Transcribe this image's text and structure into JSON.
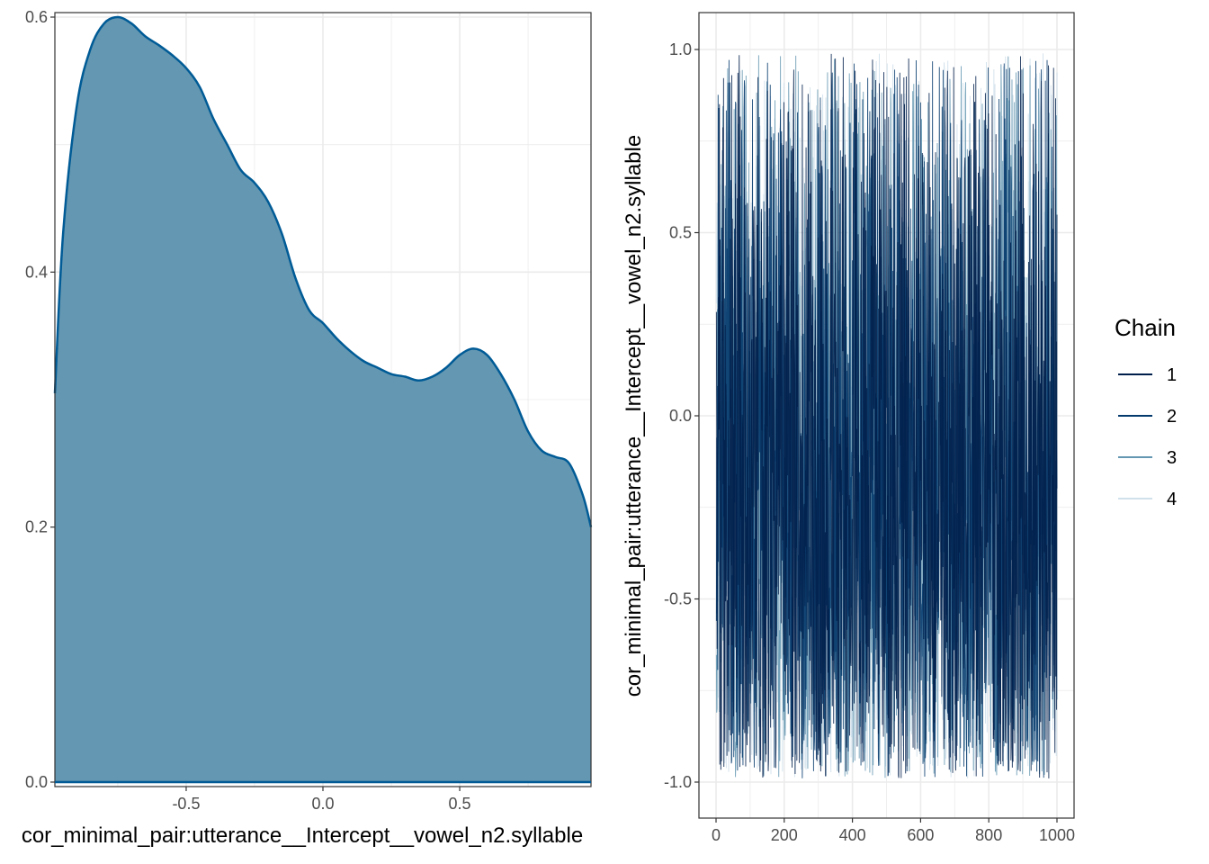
{
  "chart_data": [
    {
      "type": "area",
      "title": "",
      "xlabel": "cor_minimal_pair:utterance__Intercept__vowel_n2.syllable",
      "ylabel": "",
      "xlim": [
        -0.98,
        0.98
      ],
      "ylim": [
        0,
        0.6
      ],
      "x_ticks": [
        "-0.5",
        "0.0",
        "0.5"
      ],
      "y_ticks": [
        "0.0",
        "0.2",
        "0.4",
        "0.6"
      ],
      "grid": true,
      "fill_color": "#6497b1",
      "line_color": "#005b96",
      "x": [
        -0.98,
        -0.95,
        -0.9,
        -0.85,
        -0.8,
        -0.75,
        -0.7,
        -0.65,
        -0.6,
        -0.55,
        -0.5,
        -0.45,
        -0.4,
        -0.35,
        -0.3,
        -0.25,
        -0.2,
        -0.15,
        -0.1,
        -0.05,
        0.0,
        0.05,
        0.1,
        0.15,
        0.2,
        0.25,
        0.3,
        0.35,
        0.4,
        0.45,
        0.5,
        0.55,
        0.6,
        0.65,
        0.7,
        0.75,
        0.8,
        0.85,
        0.9,
        0.95,
        0.98
      ],
      "y": [
        0.305,
        0.43,
        0.53,
        0.575,
        0.595,
        0.6,
        0.595,
        0.585,
        0.578,
        0.57,
        0.56,
        0.545,
        0.52,
        0.5,
        0.48,
        0.47,
        0.455,
        0.43,
        0.395,
        0.37,
        0.36,
        0.348,
        0.338,
        0.33,
        0.325,
        0.32,
        0.318,
        0.315,
        0.318,
        0.325,
        0.335,
        0.34,
        0.335,
        0.32,
        0.3,
        0.275,
        0.26,
        0.255,
        0.25,
        0.225,
        0.2
      ]
    },
    {
      "type": "line",
      "title": "",
      "xlabel": "",
      "ylabel": "cor_minimal_pair:utterance__Intercept__vowel_n2.syllable",
      "xlim": [
        -50,
        1050
      ],
      "ylim": [
        -1.1,
        1.1
      ],
      "x_ticks": [
        "0",
        "200",
        "400",
        "600",
        "800",
        "1000"
      ],
      "y_ticks": [
        "-1.0",
        "-0.5",
        "0.0",
        "0.5",
        "1.0"
      ],
      "grid": true,
      "legend_title": "Chain",
      "legend_position": "right",
      "series": [
        {
          "name": "1",
          "color": "#011f4b",
          "iterations": [
            1,
            1000
          ],
          "range": [
            -1.0,
            1.0
          ]
        },
        {
          "name": "2",
          "color": "#03396c",
          "iterations": [
            1,
            1000
          ],
          "range": [
            -1.0,
            1.0
          ]
        },
        {
          "name": "3",
          "color": "#6497b1",
          "iterations": [
            1,
            1000
          ],
          "range": [
            -1.0,
            1.0
          ]
        },
        {
          "name": "4",
          "color": "#d1e1ec",
          "iterations": [
            1,
            1000
          ],
          "range": [
            -1.0,
            1.0
          ]
        }
      ]
    }
  ]
}
